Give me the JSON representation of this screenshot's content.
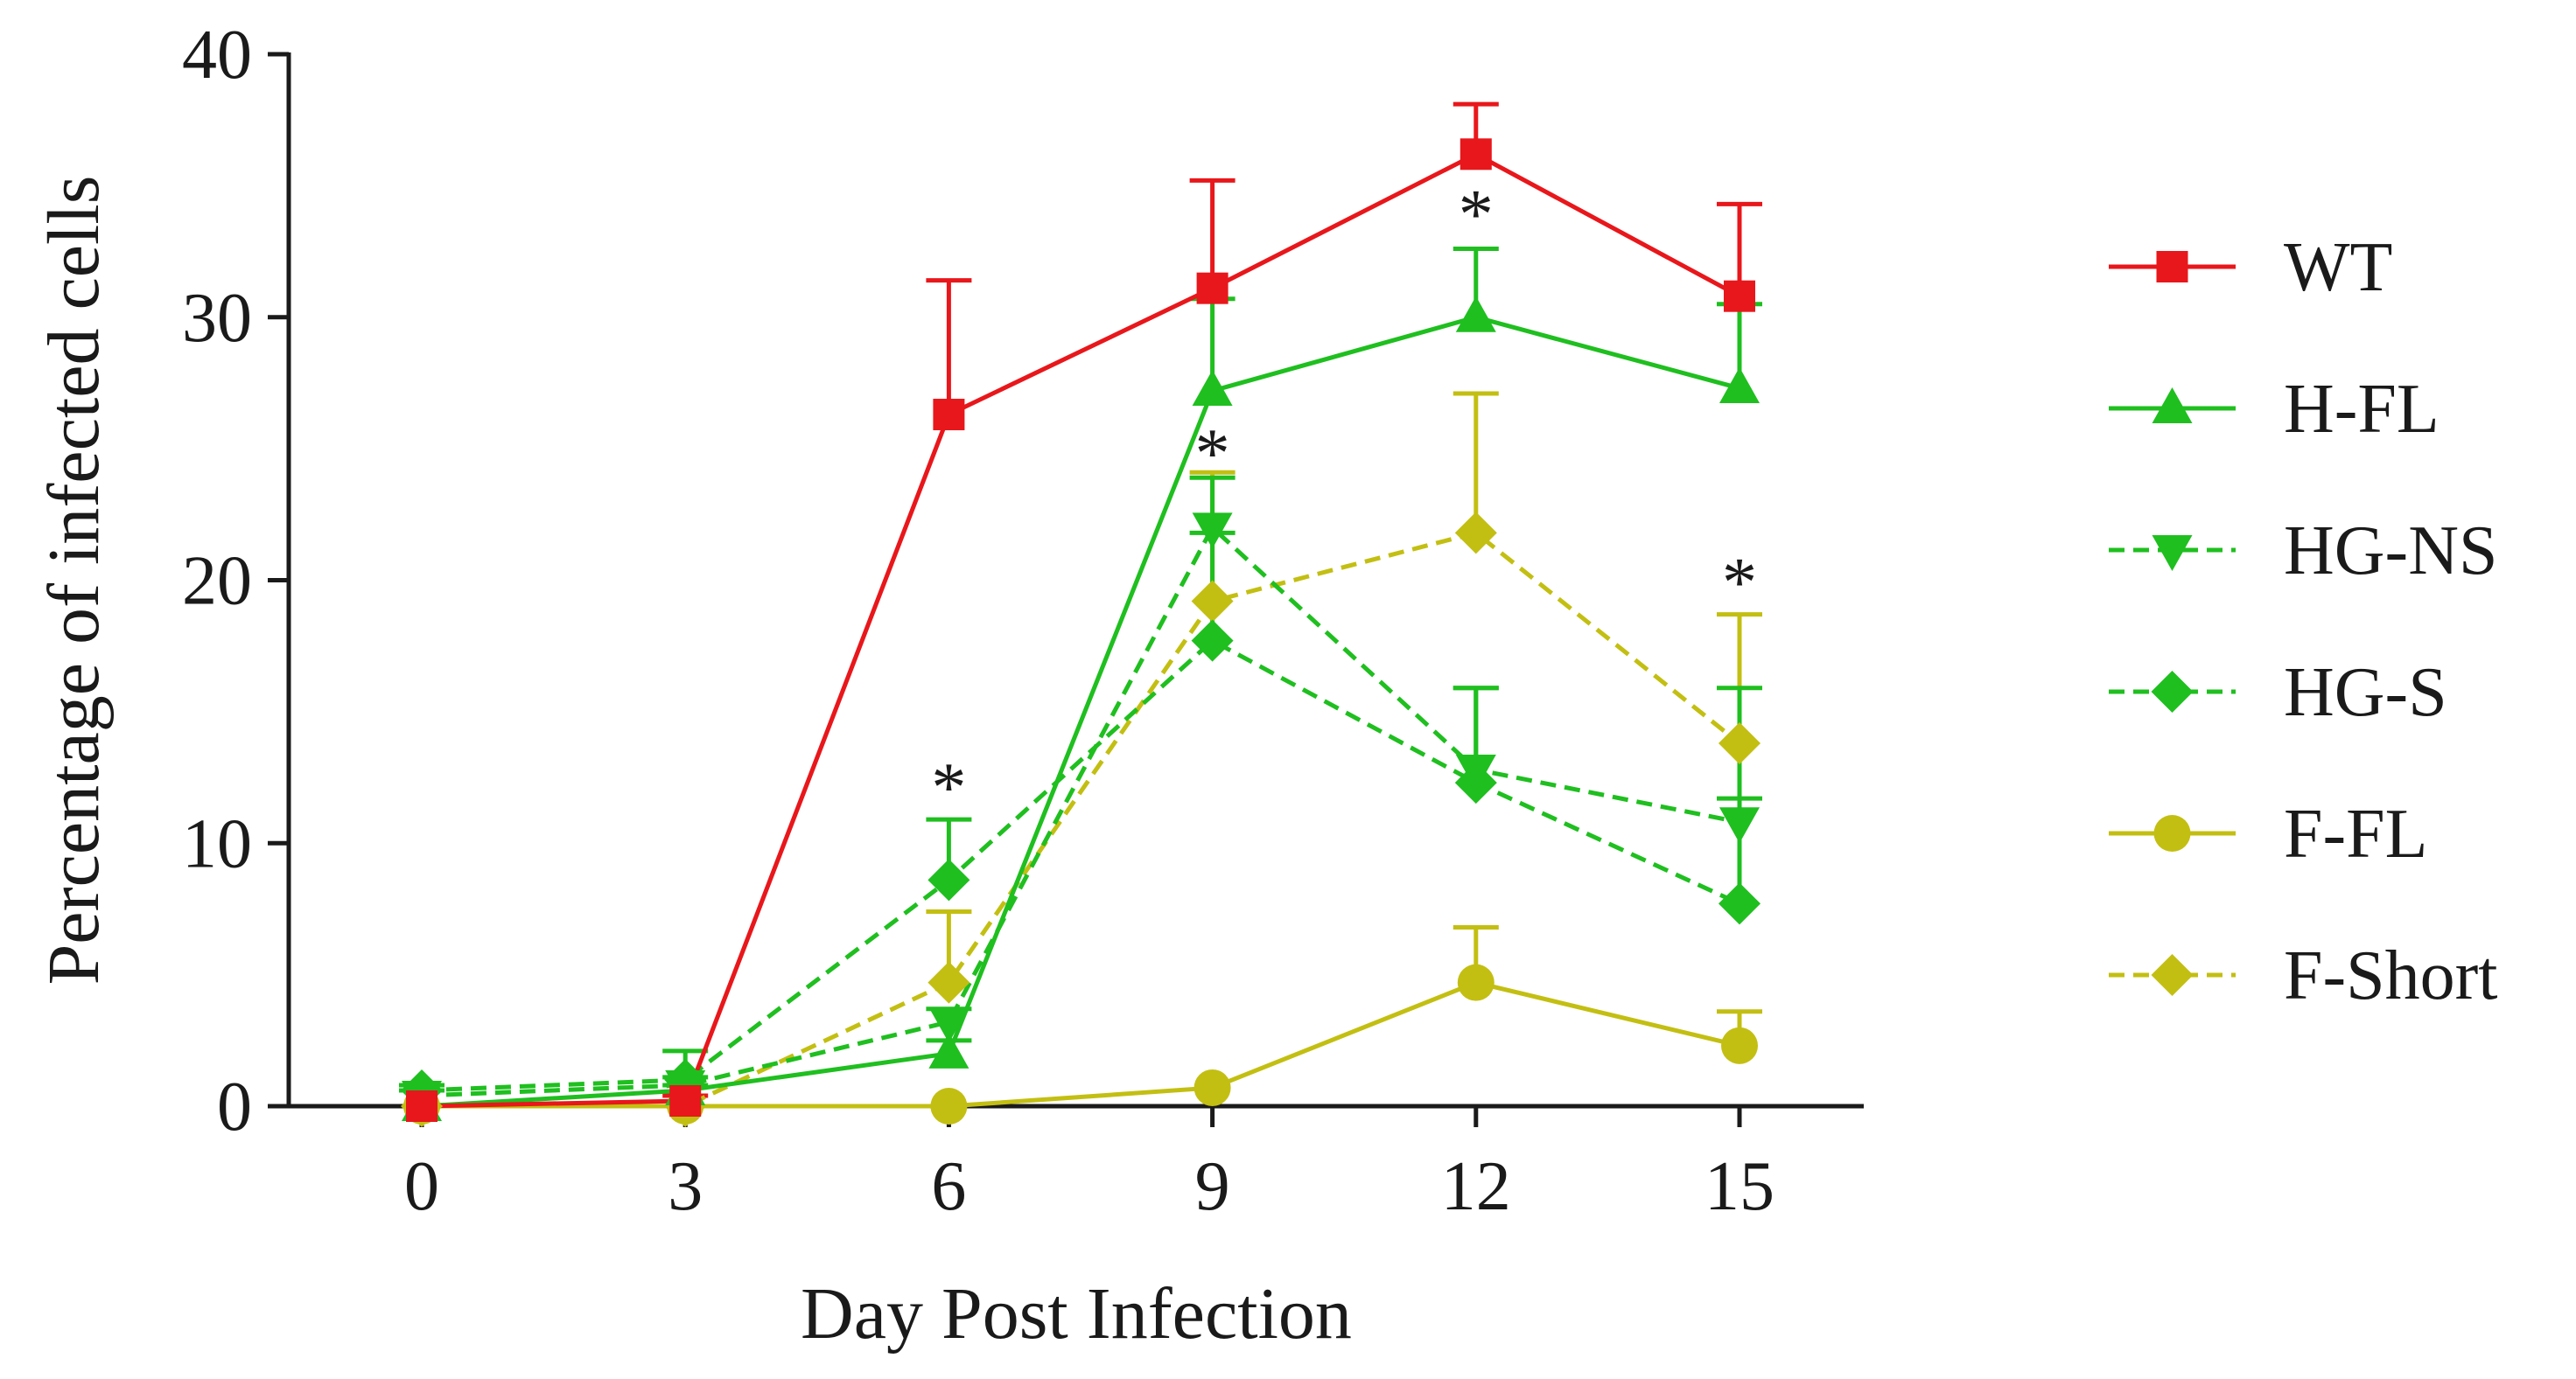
{
  "chart_data": {
    "type": "line",
    "title": "",
    "xlabel": "Day Post Infection",
    "ylabel": "Percentage of infected cells",
    "x": [
      0,
      3,
      6,
      9,
      12,
      15
    ],
    "x_tick_labels": [
      "0",
      "3",
      "6",
      "9",
      "12",
      "15"
    ],
    "ylim": [
      0,
      40
    ],
    "y_ticks": [
      0,
      10,
      20,
      30,
      40
    ],
    "y_tick_labels": [
      "0",
      "10",
      "20",
      "30",
      "40"
    ],
    "grid": false,
    "legend_position": "right",
    "series": [
      {
        "name": "WT",
        "color": "#e8171b",
        "marker": "square",
        "dashed": false,
        "values": [
          0.0,
          0.2,
          26.3,
          31.1,
          36.2,
          30.8
        ],
        "errors": [
          0.0,
          0.2,
          5.1,
          4.1,
          1.9,
          3.5
        ]
      },
      {
        "name": "H-FL",
        "color": "#1fbf1f",
        "marker": "triangle-up",
        "dashed": false,
        "values": [
          0.0,
          0.6,
          2.0,
          27.2,
          30.0,
          27.3
        ],
        "errors": [
          0.0,
          0.2,
          0.5,
          3.5,
          2.6,
          3.2
        ]
      },
      {
        "name": "HG-NS",
        "color": "#1fbf1f",
        "marker": "triangle-down",
        "dashed": true,
        "values": [
          0.4,
          0.8,
          3.2,
          22.0,
          12.8,
          10.8
        ],
        "errors": [
          0.2,
          0.3,
          0.5,
          1.9,
          3.1,
          5.1
        ]
      },
      {
        "name": "HG-S",
        "color": "#1fbf1f",
        "marker": "diamond",
        "dashed": true,
        "values": [
          0.6,
          1.0,
          8.6,
          17.7,
          12.3,
          7.7
        ],
        "errors": [
          0.2,
          1.1,
          2.3,
          4.1,
          3.6,
          4.0
        ]
      },
      {
        "name": "F-FL",
        "color": "#c3bf12",
        "marker": "circle",
        "dashed": false,
        "values": [
          0.0,
          0.0,
          0.0,
          0.7,
          4.7,
          2.3
        ],
        "errors": [
          0.0,
          0.0,
          0.0,
          0.0,
          2.1,
          1.3
        ]
      },
      {
        "name": "F-Short",
        "color": "#c3bf12",
        "marker": "diamond",
        "dashed": true,
        "values": [
          0.0,
          0.0,
          4.7,
          19.2,
          21.8,
          13.8
        ],
        "errors": [
          0.0,
          0.0,
          2.7,
          4.9,
          5.3,
          4.9
        ]
      }
    ],
    "annotations": [
      {
        "text": "*",
        "x": 6,
        "y": 10.9
      },
      {
        "text": "*",
        "x": 9,
        "y": 23.6
      },
      {
        "text": "*",
        "x": 12,
        "y": 32.7
      },
      {
        "text": "*",
        "x": 15,
        "y": 18.7
      }
    ]
  }
}
